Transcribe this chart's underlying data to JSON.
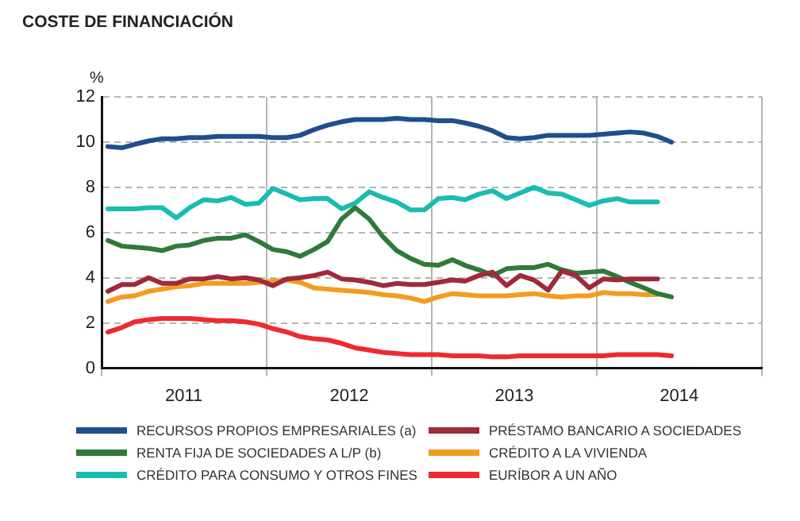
{
  "chart_data": {
    "type": "line",
    "title": "COSTE DE FINANCIACIÓN",
    "ylabel": "%",
    "x": [
      "2011-01-15",
      "2011-02-15",
      "2011-03-15",
      "2011-04-15",
      "2011-05-15",
      "2011-06-15",
      "2011-07-15",
      "2011-08-15",
      "2011-09-15",
      "2011-10-15",
      "2011-11-15",
      "2011-12-15",
      "2012-01-15",
      "2012-02-15",
      "2012-03-15",
      "2012-04-15",
      "2012-05-15",
      "2012-06-15",
      "2012-07-15",
      "2012-08-15",
      "2012-09-15",
      "2012-10-15",
      "2012-11-15",
      "2012-12-15",
      "2013-01-15",
      "2013-02-15",
      "2013-03-15",
      "2013-04-15",
      "2013-05-15",
      "2013-06-15",
      "2013-07-15",
      "2013-08-15",
      "2013-09-15",
      "2013-10-15",
      "2013-11-15",
      "2013-12-15",
      "2014-01-15",
      "2014-02-15",
      "2014-03-15",
      "2014-04-15",
      "2014-05-15",
      "2014-06-15"
    ],
    "series": [
      {
        "name": "RECURSOS PROPIOS EMPRESARIALES (a)",
        "color": "#1f4e8c",
        "values": [
          9.8,
          9.75,
          9.9,
          10.05,
          10.15,
          10.15,
          10.2,
          10.2,
          10.25,
          10.25,
          10.25,
          10.25,
          10.2,
          10.2,
          10.3,
          10.55,
          10.75,
          10.9,
          11.0,
          11.0,
          11.0,
          11.05,
          11.0,
          11.0,
          10.95,
          10.95,
          10.85,
          10.7,
          10.5,
          10.2,
          10.15,
          10.2,
          10.3,
          10.3,
          10.3,
          10.3,
          10.35,
          10.4,
          10.45,
          10.4,
          10.25,
          10.0
        ]
      },
      {
        "name": "PRÉSTAMO BANCARIO A SOCIEDADES",
        "color": "#9e2a3a",
        "values": [
          3.4,
          3.7,
          3.7,
          4.0,
          3.75,
          3.75,
          3.95,
          3.95,
          4.05,
          3.95,
          4.0,
          3.9,
          3.65,
          3.95,
          4.0,
          4.1,
          4.25,
          3.95,
          3.9,
          3.8,
          3.65,
          3.75,
          3.7,
          3.7,
          3.8,
          3.9,
          3.85,
          4.1,
          4.25,
          3.65,
          4.1,
          3.9,
          3.45,
          4.3,
          4.1,
          3.55,
          3.95,
          3.9,
          3.95,
          3.95,
          3.95,
          null
        ]
      },
      {
        "name": "RENTA FIJA DE SOCIEDADES A L/P (b)",
        "color": "#2e7a3a",
        "values": [
          5.65,
          5.4,
          5.35,
          5.3,
          5.2,
          5.4,
          5.45,
          5.65,
          5.75,
          5.75,
          5.9,
          5.6,
          5.25,
          5.15,
          4.95,
          5.25,
          5.6,
          6.6,
          7.1,
          6.6,
          5.8,
          5.2,
          4.85,
          4.6,
          4.55,
          4.8,
          4.55,
          4.35,
          4.1,
          4.4,
          4.45,
          4.45,
          4.6,
          4.35,
          4.2,
          4.25,
          4.3,
          4.05,
          3.8,
          3.55,
          3.3,
          3.15
        ]
      },
      {
        "name": "CRÉDITO A LA VIVIENDA",
        "color": "#f39c1f",
        "values": [
          2.95,
          3.15,
          3.2,
          3.4,
          3.5,
          3.6,
          3.65,
          3.75,
          3.75,
          3.75,
          3.75,
          3.8,
          3.85,
          3.9,
          3.8,
          3.55,
          3.5,
          3.45,
          3.4,
          3.35,
          3.25,
          3.2,
          3.1,
          2.95,
          3.15,
          3.3,
          3.25,
          3.2,
          3.2,
          3.2,
          3.25,
          3.3,
          3.2,
          3.15,
          3.2,
          3.2,
          3.35,
          3.3,
          3.3,
          3.25,
          3.25,
          null
        ]
      },
      {
        "name": "CRÉDITO PARA CONSUMO Y OTROS FINES",
        "color": "#1abcb0",
        "values": [
          7.05,
          7.05,
          7.05,
          7.1,
          7.1,
          6.65,
          7.1,
          7.45,
          7.4,
          7.55,
          7.25,
          7.3,
          7.95,
          7.7,
          7.45,
          7.5,
          7.5,
          7.05,
          7.3,
          7.8,
          7.55,
          7.35,
          7.0,
          7.0,
          7.5,
          7.55,
          7.45,
          7.7,
          7.85,
          7.5,
          7.75,
          8.0,
          7.75,
          7.7,
          7.45,
          7.2,
          7.4,
          7.5,
          7.35,
          7.35,
          7.35,
          null
        ]
      },
      {
        "name": "EURÍBOR A UN AÑO",
        "color": "#ee2a2f",
        "values": [
          1.6,
          1.8,
          2.05,
          2.15,
          2.2,
          2.2,
          2.2,
          2.15,
          2.1,
          2.1,
          2.05,
          1.95,
          1.75,
          1.6,
          1.4,
          1.3,
          1.25,
          1.1,
          0.9,
          0.8,
          0.7,
          0.65,
          0.6,
          0.6,
          0.6,
          0.55,
          0.55,
          0.55,
          0.5,
          0.5,
          0.55,
          0.55,
          0.55,
          0.55,
          0.55,
          0.55,
          0.55,
          0.6,
          0.6,
          0.6,
          0.6,
          0.55
        ]
      }
    ],
    "xlim": [
      "2011-01-01",
      "2015-01-01"
    ],
    "xticks": [
      {
        "value": "2011-01-01",
        "label": null
      },
      {
        "value": "2011-07-02",
        "label": "2011"
      },
      {
        "value": "2012-01-01",
        "label": null
      },
      {
        "value": "2012-07-02",
        "label": "2012"
      },
      {
        "value": "2013-01-01",
        "label": null
      },
      {
        "value": "2013-07-02",
        "label": "2013"
      },
      {
        "value": "2014-01-01",
        "label": null
      },
      {
        "value": "2014-07-02",
        "label": "2014"
      },
      {
        "value": "2015-01-01",
        "label": null
      }
    ],
    "ylim": [
      0,
      12
    ],
    "yticks": [
      0,
      2,
      4,
      6,
      8,
      10,
      12
    ],
    "grid": true,
    "legend": "bottom",
    "marker": "none",
    "line_style": "solid"
  }
}
